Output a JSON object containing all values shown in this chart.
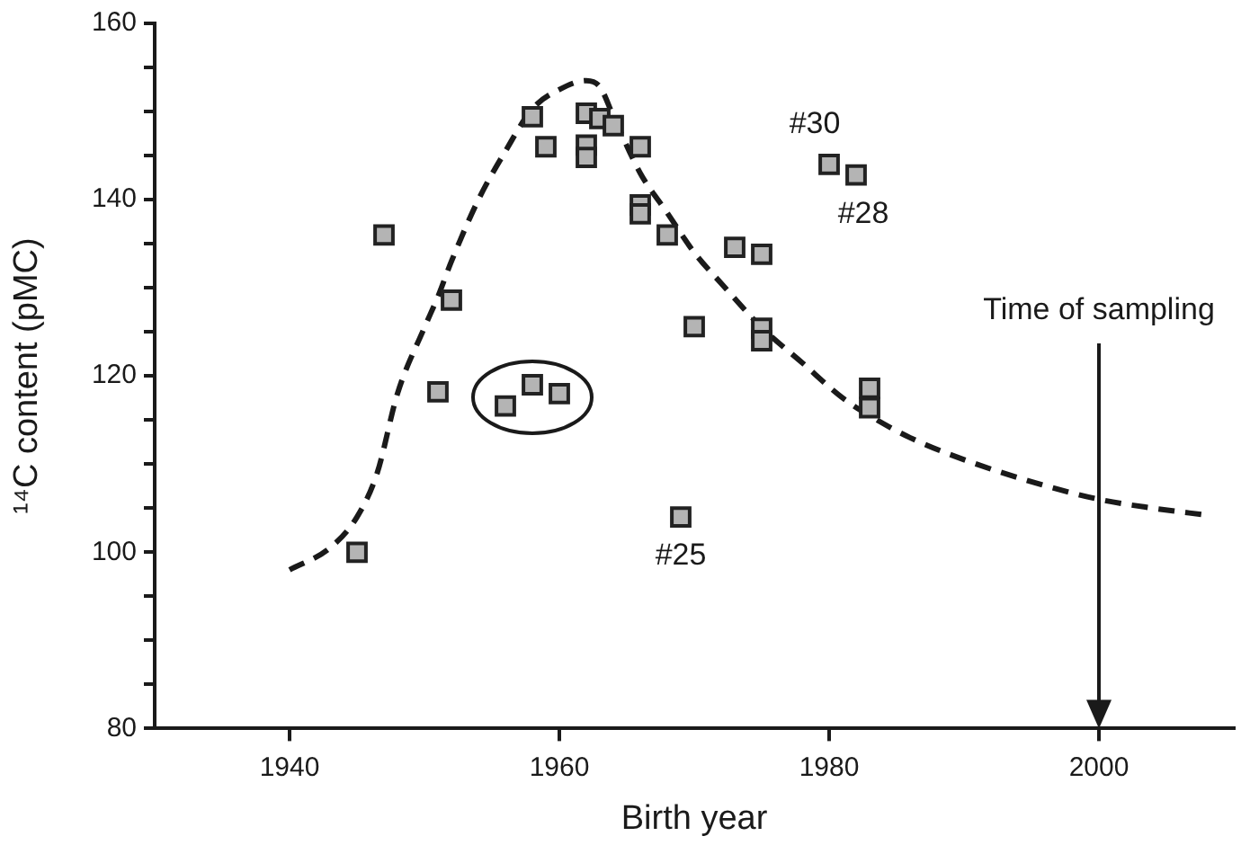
{
  "chart_data": {
    "type": "scatter",
    "xlabel": "Birth year",
    "ylabel": "¹⁴C content (pMC)",
    "xlim": [
      1930,
      2010
    ],
    "xticks": [
      1940,
      1960,
      1980,
      2000
    ],
    "ylim": [
      80,
      160
    ],
    "yticks": [
      80,
      {
        "value": 85,
        "label": null
      },
      {
        "value": 90,
        "label": null
      },
      {
        "value": 95,
        "label": null
      },
      100,
      {
        "value": 105,
        "label": null
      },
      {
        "value": 110,
        "label": null
      },
      {
        "value": 115,
        "label": null
      },
      120,
      {
        "value": 125,
        "label": null
      },
      {
        "value": 130,
        "label": null
      },
      {
        "value": 135,
        "label": null
      },
      140,
      {
        "value": 145,
        "label": null
      },
      {
        "value": 150,
        "label": null
      },
      {
        "value": 155,
        "label": null
      },
      160
    ],
    "grid": false,
    "legend": false,
    "marker": "square",
    "series": [
      {
        "color": "#b4b4b4",
        "x": [
          1945,
          1947,
          1952,
          1951,
          1956,
          1958,
          1960,
          1958,
          1959,
          1962,
          1963,
          1964,
          1962,
          1962,
          1966,
          1966,
          1966,
          1968,
          1970,
          1969,
          1973,
          1975,
          1975,
          1975,
          1980,
          1982,
          1983,
          1983
        ],
        "values": [
          100,
          136,
          128.6,
          118.2,
          116.6,
          119,
          118,
          149.4,
          146,
          149.8,
          149.2,
          148.4,
          146.2,
          144.8,
          146,
          139.4,
          138.4,
          136,
          125.6,
          104,
          134.6,
          133.8,
          125.4,
          124,
          144,
          142.8,
          118.6,
          116.4
        ]
      },
      {
        "type": "line",
        "color": "#1a1a1a",
        "line_style": "dashed",
        "marker": "none",
        "x": [
          1940,
          1943,
          1945,
          1946.5,
          1948,
          1950,
          1951,
          1952,
          1954,
          1956,
          1958,
          1960,
          1962,
          1963,
          1964,
          1966,
          1968,
          1970,
          1972,
          1975,
          1978,
          1981,
          1983,
          1986,
          1990,
          1995,
          2000,
          2004,
          2008
        ],
        "values": [
          98,
          100.5,
          104,
          109,
          118,
          125.5,
          129,
          133,
          140,
          145.5,
          150.3,
          152.5,
          153.5,
          152.8,
          149.5,
          143,
          138.5,
          134,
          130.5,
          125.5,
          121.5,
          117.5,
          115.5,
          113,
          110.5,
          108,
          106,
          105,
          104.2
        ]
      }
    ],
    "ref_lines": [
      {
        "axis": "x",
        "value": 2000,
        "label": "Time of sampling",
        "color": "#1a1a1a"
      }
    ],
    "annotations": [
      {
        "text": "#25",
        "x": 1969,
        "y": 104
      },
      {
        "text": "#30",
        "x": 1980,
        "y": 144
      },
      {
        "text": "#28",
        "x": 1982,
        "y": 142.8
      }
    ]
  }
}
